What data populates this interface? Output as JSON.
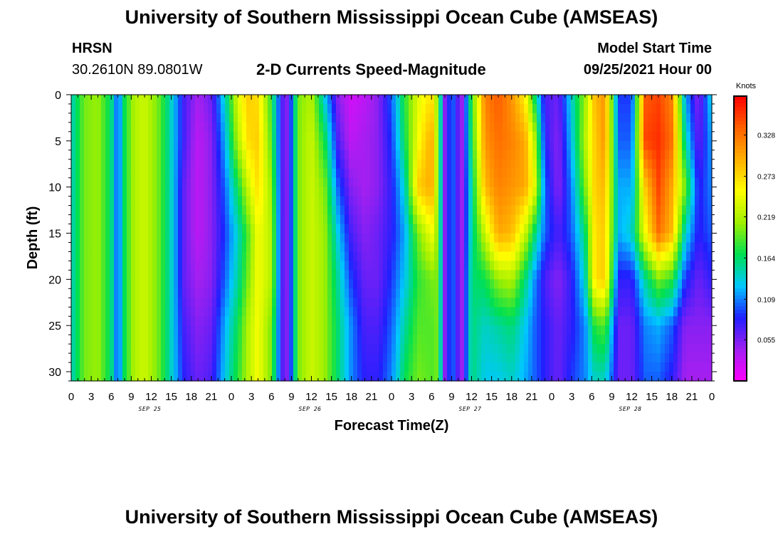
{
  "header": {
    "title": "University of Southern Mississippi Ocean Cube (AMSEAS)",
    "station": "HRSN",
    "coords": "30.2610N  89.0801W",
    "subtitle": "2-D Currents Speed-Magnitude",
    "model_label": "Model Start Time",
    "model_time": "09/25/2021 Hour 00"
  },
  "footer": {
    "title": "University of Southern Mississippi Ocean Cube (AMSEAS)"
  },
  "chart_data": {
    "type": "heatmap",
    "title": "2-D Currents Speed-Magnitude",
    "xlabel": "Forecast Time(Z)",
    "ylabel": "Depth (ft)",
    "x_ticks": [
      "0",
      "3",
      "6",
      "9",
      "12",
      "15",
      "18",
      "21",
      "0",
      "3",
      "6",
      "9",
      "12",
      "15",
      "18",
      "21",
      "0",
      "3",
      "6",
      "9",
      "12",
      "15",
      "18",
      "21",
      "0",
      "3",
      "6",
      "9",
      "12",
      "15",
      "18",
      "21",
      "0"
    ],
    "x_range_hours": [
      0,
      96
    ],
    "date_labels": [
      "SEP 25",
      "SEP 26",
      "SEP 27",
      "SEP 28"
    ],
    "y_ticks": [
      0,
      5,
      10,
      15,
      20,
      25,
      30
    ],
    "y_range_ft": [
      0,
      31
    ],
    "y_inverted": true,
    "colorbar": {
      "unit": "Knots",
      "tick_labels": [
        "0.328",
        "0.273",
        "0.219",
        "0.164",
        "0.109",
        "0.055"
      ],
      "range": [
        0.0,
        0.38
      ],
      "colors": [
        "#ff00ff",
        "#a020f0",
        "#2020ff",
        "#00c8ff",
        "#00e050",
        "#a0f000",
        "#ffff00",
        "#ffb000",
        "#ff6000",
        "#ff0000"
      ]
    },
    "time_columns_hours": [
      0,
      2,
      4,
      6,
      7,
      8,
      9.5,
      11,
      13,
      15,
      17,
      19,
      21,
      23,
      25,
      26.5,
      28,
      30,
      31.5,
      32.5,
      34,
      36,
      38,
      40,
      42,
      44,
      46,
      48,
      50,
      52,
      54,
      55,
      56,
      57,
      58.5,
      60,
      62,
      64,
      66,
      68,
      69.5,
      71,
      73,
      75,
      77,
      78.5,
      80,
      82,
      84,
      86,
      88,
      90,
      92,
      94,
      96
    ],
    "depth_rows_ft": [
      0,
      5,
      10,
      15,
      20,
      25,
      31
    ],
    "speed_knots_by_time": [
      [
        0.14,
        0.14,
        0.14,
        0.14,
        0.14,
        0.14,
        0.14
      ],
      [
        0.2,
        0.2,
        0.2,
        0.2,
        0.2,
        0.2,
        0.2
      ],
      [
        0.21,
        0.21,
        0.21,
        0.21,
        0.21,
        0.21,
        0.21
      ],
      [
        0.16,
        0.16,
        0.16,
        0.16,
        0.16,
        0.16,
        0.16
      ],
      [
        0.09,
        0.09,
        0.09,
        0.09,
        0.09,
        0.09,
        0.09
      ],
      [
        0.17,
        0.17,
        0.17,
        0.17,
        0.17,
        0.17,
        0.17
      ],
      [
        0.22,
        0.22,
        0.22,
        0.22,
        0.22,
        0.22,
        0.22
      ],
      [
        0.23,
        0.23,
        0.23,
        0.23,
        0.23,
        0.23,
        0.23
      ],
      [
        0.2,
        0.2,
        0.2,
        0.2,
        0.2,
        0.2,
        0.2
      ],
      [
        0.14,
        0.14,
        0.14,
        0.14,
        0.14,
        0.14,
        0.14
      ],
      [
        0.07,
        0.07,
        0.06,
        0.06,
        0.06,
        0.07,
        0.08
      ],
      [
        0.04,
        0.03,
        0.03,
        0.03,
        0.04,
        0.05,
        0.06
      ],
      [
        0.06,
        0.05,
        0.05,
        0.05,
        0.05,
        0.06,
        0.07
      ],
      [
        0.14,
        0.12,
        0.1,
        0.09,
        0.1,
        0.12,
        0.13
      ],
      [
        0.24,
        0.22,
        0.17,
        0.14,
        0.15,
        0.17,
        0.18
      ],
      [
        0.28,
        0.27,
        0.23,
        0.19,
        0.2,
        0.22,
        0.22
      ],
      [
        0.27,
        0.28,
        0.27,
        0.25,
        0.25,
        0.25,
        0.25
      ],
      [
        0.18,
        0.19,
        0.21,
        0.22,
        0.22,
        0.2,
        0.2
      ],
      [
        0.07,
        0.07,
        0.07,
        0.07,
        0.07,
        0.07,
        0.07
      ],
      [
        0.05,
        0.05,
        0.05,
        0.05,
        0.05,
        0.05,
        0.05
      ],
      [
        0.2,
        0.2,
        0.2,
        0.2,
        0.2,
        0.2,
        0.2
      ],
      [
        0.22,
        0.23,
        0.23,
        0.23,
        0.23,
        0.23,
        0.23
      ],
      [
        0.13,
        0.17,
        0.2,
        0.21,
        0.21,
        0.21,
        0.21
      ],
      [
        0.05,
        0.07,
        0.1,
        0.13,
        0.15,
        0.16,
        0.16
      ],
      [
        0.02,
        0.03,
        0.05,
        0.07,
        0.09,
        0.11,
        0.11
      ],
      [
        0.03,
        0.04,
        0.04,
        0.05,
        0.06,
        0.07,
        0.08
      ],
      [
        0.05,
        0.05,
        0.05,
        0.06,
        0.06,
        0.07,
        0.08
      ],
      [
        0.1,
        0.09,
        0.08,
        0.08,
        0.09,
        0.1,
        0.11
      ],
      [
        0.18,
        0.17,
        0.14,
        0.12,
        0.13,
        0.15,
        0.17
      ],
      [
        0.24,
        0.25,
        0.28,
        0.2,
        0.18,
        0.19,
        0.2
      ],
      [
        0.27,
        0.3,
        0.3,
        0.25,
        0.2,
        0.19,
        0.19
      ],
      [
        0.2,
        0.2,
        0.2,
        0.2,
        0.2,
        0.2,
        0.2
      ],
      [
        0.05,
        0.05,
        0.05,
        0.05,
        0.05,
        0.05,
        0.05
      ],
      [
        0.11,
        0.11,
        0.11,
        0.11,
        0.11,
        0.11,
        0.11
      ],
      [
        0.04,
        0.04,
        0.04,
        0.04,
        0.04,
        0.04,
        0.04
      ],
      [
        0.18,
        0.17,
        0.15,
        0.15,
        0.16,
        0.16,
        0.16
      ],
      [
        0.32,
        0.31,
        0.29,
        0.23,
        0.17,
        0.14,
        0.13
      ],
      [
        0.34,
        0.33,
        0.32,
        0.3,
        0.21,
        0.15,
        0.13
      ],
      [
        0.31,
        0.32,
        0.31,
        0.29,
        0.22,
        0.16,
        0.14
      ],
      [
        0.26,
        0.3,
        0.3,
        0.23,
        0.16,
        0.13,
        0.12
      ],
      [
        0.16,
        0.22,
        0.24,
        0.16,
        0.11,
        0.1,
        0.1
      ],
      [
        0.07,
        0.08,
        0.1,
        0.1,
        0.07,
        0.08,
        0.08
      ],
      [
        0.06,
        0.05,
        0.05,
        0.07,
        0.05,
        0.06,
        0.06
      ],
      [
        0.14,
        0.13,
        0.11,
        0.1,
        0.08,
        0.08,
        0.09
      ],
      [
        0.21,
        0.22,
        0.2,
        0.16,
        0.14,
        0.11,
        0.11
      ],
      [
        0.29,
        0.28,
        0.28,
        0.27,
        0.27,
        0.18,
        0.14
      ],
      [
        0.31,
        0.31,
        0.29,
        0.28,
        0.28,
        0.19,
        0.14
      ],
      [
        0.09,
        0.1,
        0.12,
        0.12,
        0.08,
        0.06,
        0.06
      ],
      [
        0.09,
        0.1,
        0.12,
        0.14,
        0.08,
        0.06,
        0.06
      ],
      [
        0.34,
        0.35,
        0.28,
        0.25,
        0.15,
        0.11,
        0.1
      ],
      [
        0.35,
        0.36,
        0.35,
        0.33,
        0.2,
        0.12,
        0.1
      ],
      [
        0.32,
        0.33,
        0.3,
        0.29,
        0.18,
        0.1,
        0.08
      ],
      [
        0.12,
        0.15,
        0.2,
        0.14,
        0.09,
        0.05,
        0.04
      ],
      [
        0.05,
        0.06,
        0.08,
        0.08,
        0.06,
        0.05,
        0.04
      ],
      [
        0.14,
        0.12,
        0.11,
        0.1,
        0.08,
        0.05,
        0.04
      ]
    ]
  }
}
